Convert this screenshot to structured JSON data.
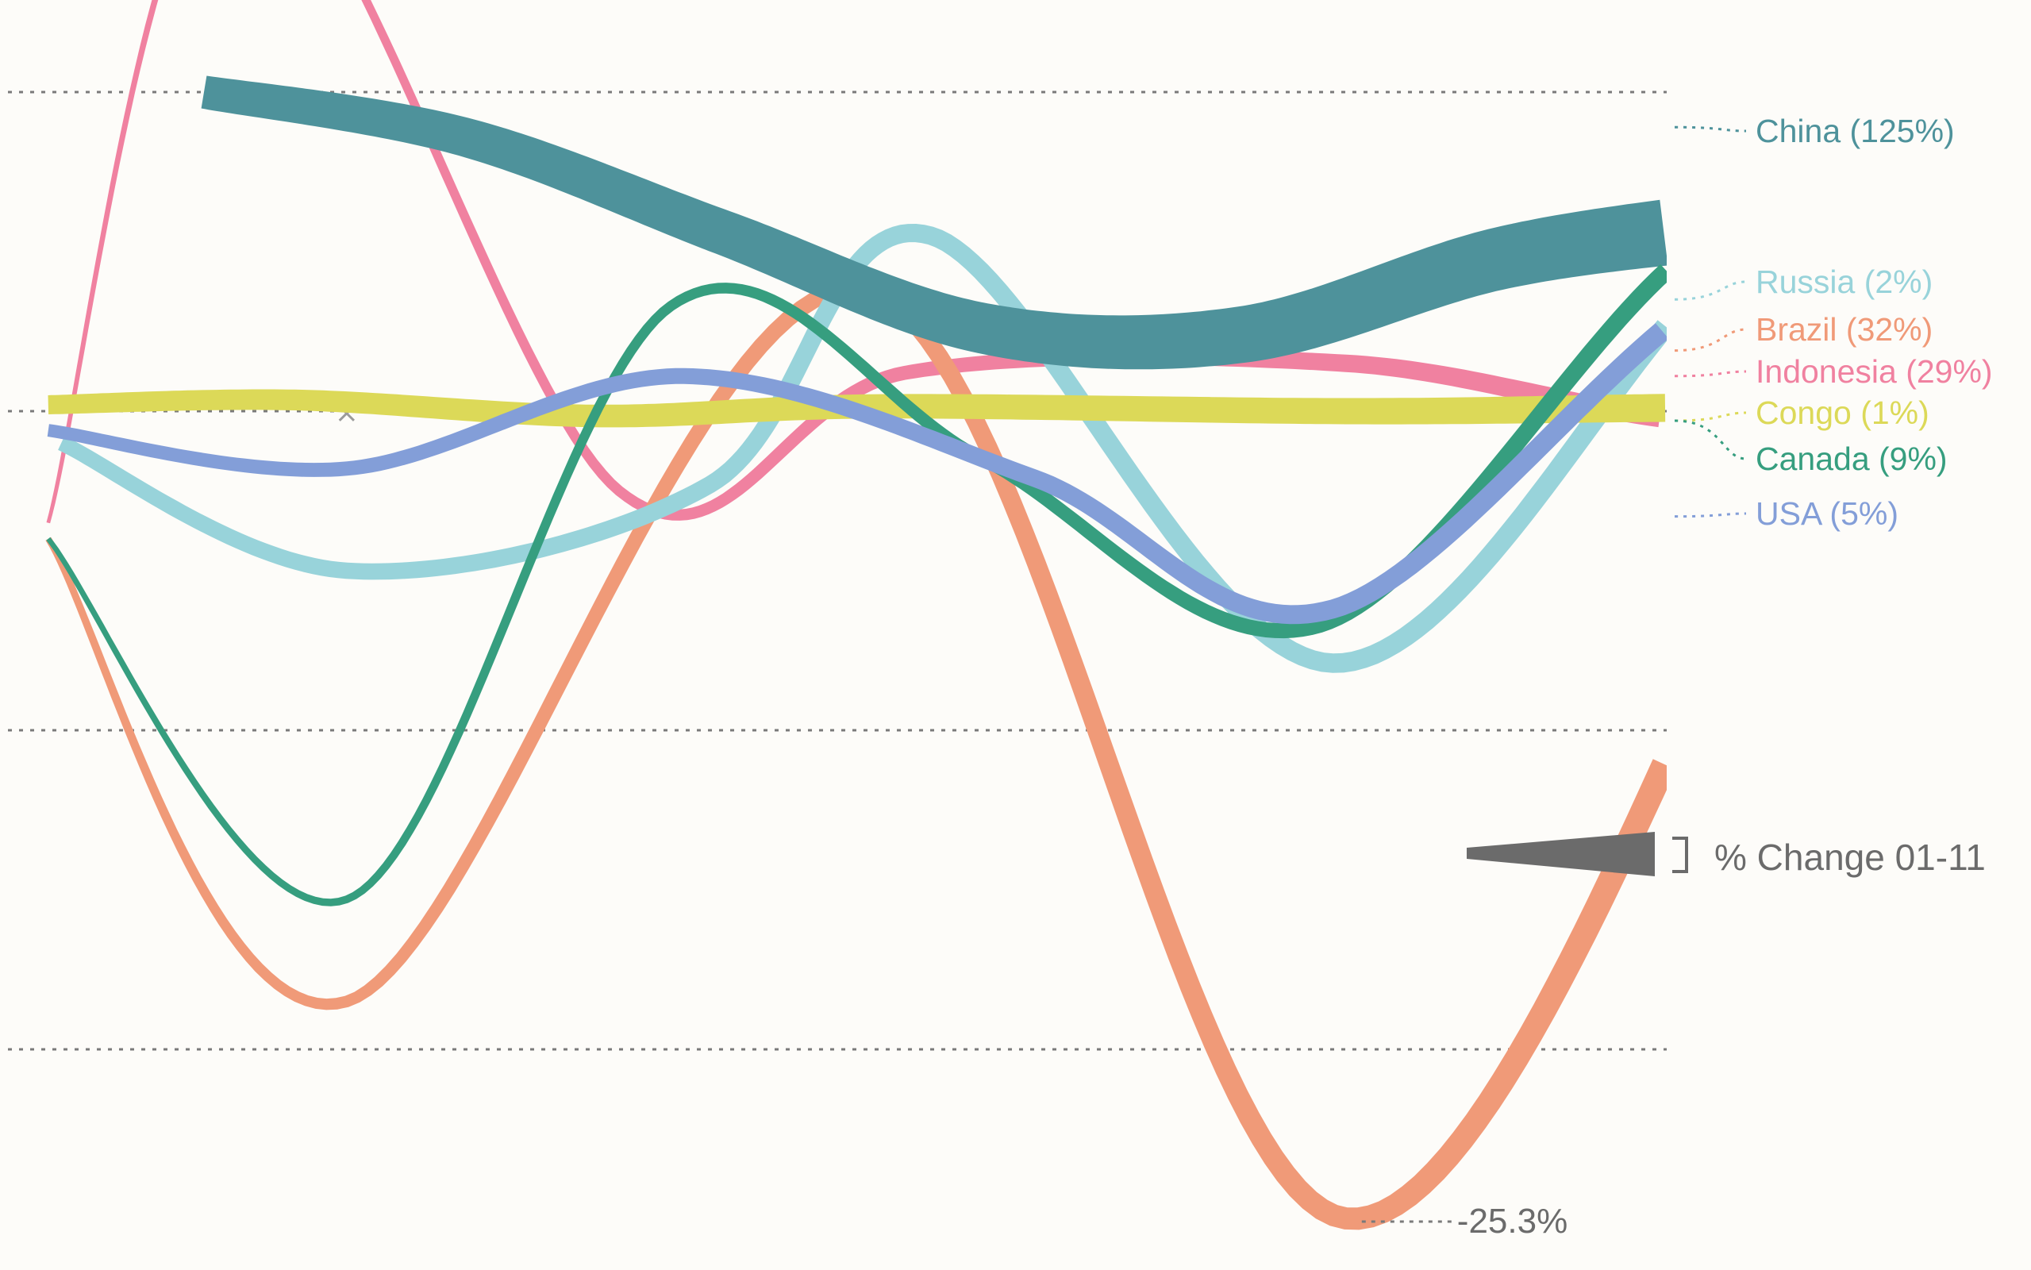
{
  "chart_data": {
    "type": "line",
    "encoding": "line thickness shows % change 2001-2011",
    "x": [
      0,
      1,
      2,
      3,
      4,
      5,
      6,
      7,
      8
    ],
    "ylim": [
      -40,
      12
    ],
    "grid": true,
    "legend_placement": "right",
    "baseline_y": 0,
    "gridlines_y": [
      10,
      -10,
      -20
    ],
    "series": [
      {
        "name": "China",
        "label": "China (125%)",
        "color": "#4e929b",
        "values": [
          10.0,
          8.6,
          5.6,
          2.6,
          2.4,
          4.8,
          6.0,
          7.3,
          8.9
        ],
        "width_start": 26,
        "width_end": 52
      },
      {
        "name": "Russia",
        "label": "Russia (2%)",
        "color": "#98d3da",
        "values": [
          -1,
          -5,
          -2.3,
          5.5,
          -7.9,
          4.8,
          4.8,
          3.5
        ],
        "x": [
          -0.55,
          0.55,
          1.95,
          2.8,
          4.35,
          5.9,
          6.8,
          7.7
        ],
        "width_start": 12,
        "width_end": 16
      },
      {
        "name": "Brazil",
        "label": "Brazil (32%)",
        "color": "#f09a78",
        "values": [
          -4,
          -18.5,
          3.8,
          -25.3,
          0,
          2.2,
          1.9
        ],
        "x": [
          -0.6,
          0.55,
          2.55,
          4.4,
          6.3,
          6.95,
          7.7
        ],
        "width_start": 5,
        "width_end": 20
      },
      {
        "name": "Indonesia",
        "label": "Indonesia (29%)",
        "color": "#f081a0",
        "values": [
          -3.5,
          18,
          -2.5,
          1.2,
          1.5,
          -0.3,
          1.1
        ],
        "x": [
          -0.6,
          0.15,
          1.6,
          2.7,
          4.4,
          5.8,
          6.9
        ],
        "width_start": 3,
        "width_end": 16
      },
      {
        "name": "Congo",
        "label": "Congo (1%)",
        "color": "#dcd958",
        "values": [
          0.2,
          0.35,
          -0.15,
          0.15,
          0,
          0.1,
          0.2,
          -0.3
        ],
        "x": [
          -0.6,
          0.35,
          1.5,
          2.6,
          4.4,
          5.6,
          6.8,
          7.7
        ],
        "width_start": 15,
        "width_end": 22
      },
      {
        "name": "Canada",
        "label": "Canada (9%)",
        "color": "#369e7f",
        "values": [
          -4,
          -15.3,
          3.3,
          -1.5,
          -6.7,
          5.4,
          4.3,
          -0.3
        ],
        "x": [
          -0.6,
          0.55,
          1.8,
          3.0,
          4.3,
          5.8,
          6.8,
          7.7
        ],
        "width_start": 4,
        "width_end": 14
      },
      {
        "name": "USA",
        "label": "USA (5%)",
        "color": "#839ed8",
        "values": [
          -0.6,
          -1.8,
          1.1,
          -2.1,
          -6.2,
          4.2,
          0.7,
          -3.3
        ],
        "x": [
          -0.6,
          0.55,
          1.85,
          3.2,
          4.35,
          5.95,
          7.0,
          7.7
        ],
        "width_start": 10,
        "width_end": 16
      }
    ],
    "annotations": [
      {
        "text": "-25.3%",
        "series": "Brazil",
        "x": 4.4,
        "y": -25.3
      }
    ],
    "markers": [
      {
        "symbol": "×",
        "x": 0.55,
        "y": 0
      },
      {
        "symbol": "×",
        "x": 4.4,
        "y": 0
      }
    ],
    "legend": {
      "label": "% Change 01-11",
      "shape": "wedge",
      "color": "#6b6b6b"
    }
  }
}
